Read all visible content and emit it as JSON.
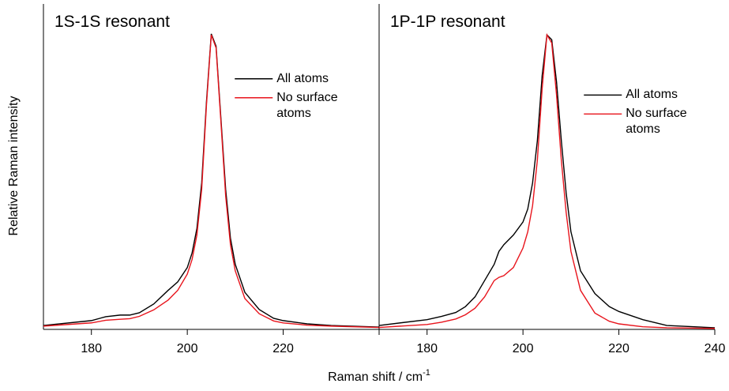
{
  "ylabel": "Relative Raman intensity",
  "xlabel": {
    "text": "Raman shift / cm",
    "superscript": "-1"
  },
  "chart_data": [
    {
      "type": "line",
      "title": "1S-1S resonant",
      "xlim": [
        170,
        240
      ],
      "xticks": [
        180,
        200,
        220,
        240
      ],
      "ylim": [
        0,
        1
      ],
      "legend": "upper right",
      "x": [
        170,
        180,
        183,
        186,
        188,
        190,
        193,
        196,
        198,
        200,
        201,
        202,
        203,
        204,
        205,
        206,
        207,
        208,
        209,
        210,
        212,
        215,
        218,
        220,
        225,
        230,
        240
      ],
      "series": [
        {
          "name": "All atoms",
          "color": "#000000",
          "values": [
            0.012,
            0.027,
            0.039,
            0.044,
            0.044,
            0.051,
            0.078,
            0.12,
            0.146,
            0.19,
            0.235,
            0.31,
            0.45,
            0.7,
            0.908,
            0.87,
            0.65,
            0.43,
            0.28,
            0.2,
            0.114,
            0.061,
            0.034,
            0.027,
            0.017,
            0.012,
            0.007
          ]
        },
        {
          "name": "No surface atoms",
          "color": "#e8141c",
          "values": [
            0.01,
            0.02,
            0.028,
            0.031,
            0.033,
            0.04,
            0.06,
            0.09,
            0.12,
            0.17,
            0.215,
            0.29,
            0.43,
            0.69,
            0.905,
            0.865,
            0.64,
            0.41,
            0.26,
            0.18,
            0.095,
            0.048,
            0.026,
            0.02,
            0.013,
            0.01,
            0.006
          ]
        }
      ]
    },
    {
      "type": "line",
      "title": "1P-1P resonant",
      "xlim": [
        170,
        240
      ],
      "xticks": [
        180,
        200,
        220,
        240
      ],
      "ylim": [
        0,
        1
      ],
      "legend": "upper right",
      "x": [
        170,
        180,
        183,
        186,
        188,
        190,
        192,
        194,
        195,
        196,
        198,
        200,
        201,
        202,
        203,
        204,
        205,
        206,
        207,
        208,
        209,
        210,
        212,
        215,
        218,
        220,
        225,
        230,
        240
      ],
      "series": [
        {
          "name": "All atoms",
          "color": "#000000",
          "values": [
            0.012,
            0.03,
            0.04,
            0.052,
            0.07,
            0.1,
            0.15,
            0.2,
            0.24,
            0.26,
            0.29,
            0.33,
            0.37,
            0.45,
            0.58,
            0.78,
            0.905,
            0.89,
            0.76,
            0.58,
            0.42,
            0.3,
            0.18,
            0.11,
            0.07,
            0.055,
            0.03,
            0.012,
            0.005
          ]
        },
        {
          "name": "No surface atoms",
          "color": "#e8141c",
          "values": [
            0.006,
            0.015,
            0.022,
            0.032,
            0.045,
            0.065,
            0.1,
            0.15,
            0.16,
            0.165,
            0.19,
            0.25,
            0.3,
            0.38,
            0.52,
            0.74,
            0.905,
            0.88,
            0.72,
            0.52,
            0.36,
            0.24,
            0.12,
            0.05,
            0.025,
            0.017,
            0.008,
            0.005,
            0.003
          ]
        }
      ]
    }
  ]
}
